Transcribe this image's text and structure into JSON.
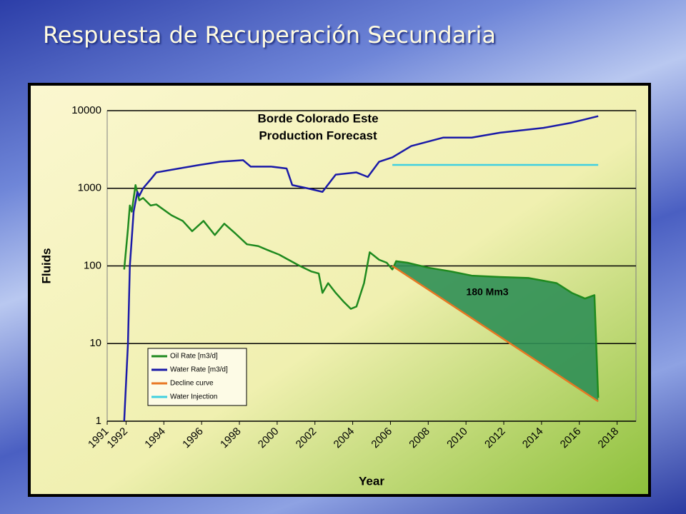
{
  "slide_title": "Respuesta de Recuperación Secundaria",
  "chart_data": {
    "type": "line",
    "title": "Borde Colorado Este",
    "subtitle": "Production Forecast",
    "x_label": "Year",
    "y_label": "Fluids",
    "annotations": [
      "180 Mm3"
    ],
    "log_y": true,
    "grid": true,
    "legend": "lower left",
    "xlim": [
      1991,
      2019
    ],
    "xticks": [
      1991,
      1992,
      1994,
      1996,
      1998,
      2000,
      2002,
      2004,
      2006,
      2008,
      2010,
      2012,
      2014,
      2016,
      2018
    ],
    "ylim": [
      1,
      10000
    ],
    "yticks": [
      1,
      10,
      100,
      1000,
      10000
    ],
    "area_color": "#2f8f55",
    "area_between": [
      "Oil Rate [m3/d]",
      "Decline curve"
    ],
    "series": [
      {
        "name": "Oil Rate [m3/d]",
        "color": "#1f8a1f",
        "x": [
          1991.9,
          1992.1,
          1992.2,
          1992.3,
          1992.5,
          1992.7,
          1992.9,
          1993.3,
          1993.6,
          1994.4,
          1995.0,
          1995.5,
          1996.1,
          1996.7,
          1997.2,
          1997.8,
          1998.4,
          1999.0,
          1999.5,
          2000.1,
          2000.6,
          2001.2,
          2001.8,
          2002.2,
          2002.4,
          2002.7,
          2003.1,
          2003.5,
          2003.9,
          2004.2,
          2004.6,
          2004.9,
          2005.4,
          2005.8,
          2006.1,
          2006.3,
          2006.9,
          2008.0,
          2009.2,
          2010.3,
          2011.8,
          2013.3,
          2014.8,
          2015.6,
          2016.3,
          2016.8,
          2017.0
        ],
        "values": [
          90,
          300,
          600,
          500,
          1100,
          700,
          750,
          600,
          620,
          450,
          380,
          280,
          380,
          250,
          350,
          260,
          190,
          180,
          160,
          140,
          120,
          100,
          85,
          80,
          45,
          60,
          45,
          35,
          28,
          30,
          60,
          150,
          120,
          110,
          90,
          115,
          110,
          95,
          85,
          75,
          72,
          70,
          60,
          45,
          38,
          42,
          2
        ]
      },
      {
        "name": "Water Rate [m3/d]",
        "color": "#1a1aa8",
        "x": [
          1991.9,
          1992.1,
          1992.2,
          1992.4,
          1992.6,
          1992.7,
          1992.9,
          1993.3,
          1993.6,
          1994.8,
          1995.9,
          1997.0,
          1998.2,
          1998.6,
          1999.7,
          2000.5,
          2000.8,
          2001.6,
          2002.4,
          2003.1,
          2004.2,
          2004.8,
          2005.4,
          2006.1,
          2007.1,
          2008.8,
          2010.3,
          2011.8,
          2014.1,
          2015.6,
          2017.0
        ],
        "values": [
          1,
          10,
          100,
          500,
          900,
          800,
          1000,
          1300,
          1600,
          1800,
          2000,
          2200,
          2300,
          1900,
          1900,
          1800,
          1100,
          1000,
          900,
          1500,
          1600,
          1400,
          2200,
          2500,
          3500,
          4500,
          4500,
          5200,
          6000,
          7000,
          8500
        ]
      },
      {
        "name": "Decline curve",
        "color": "#e87722",
        "x": [
          2006.1,
          2017.0
        ],
        "values": [
          100,
          1.8
        ]
      },
      {
        "name": "Water Injection",
        "color": "#40d0e0",
        "x": [
          2006.1,
          2017.0
        ],
        "values": [
          2000,
          2000
        ]
      }
    ]
  }
}
